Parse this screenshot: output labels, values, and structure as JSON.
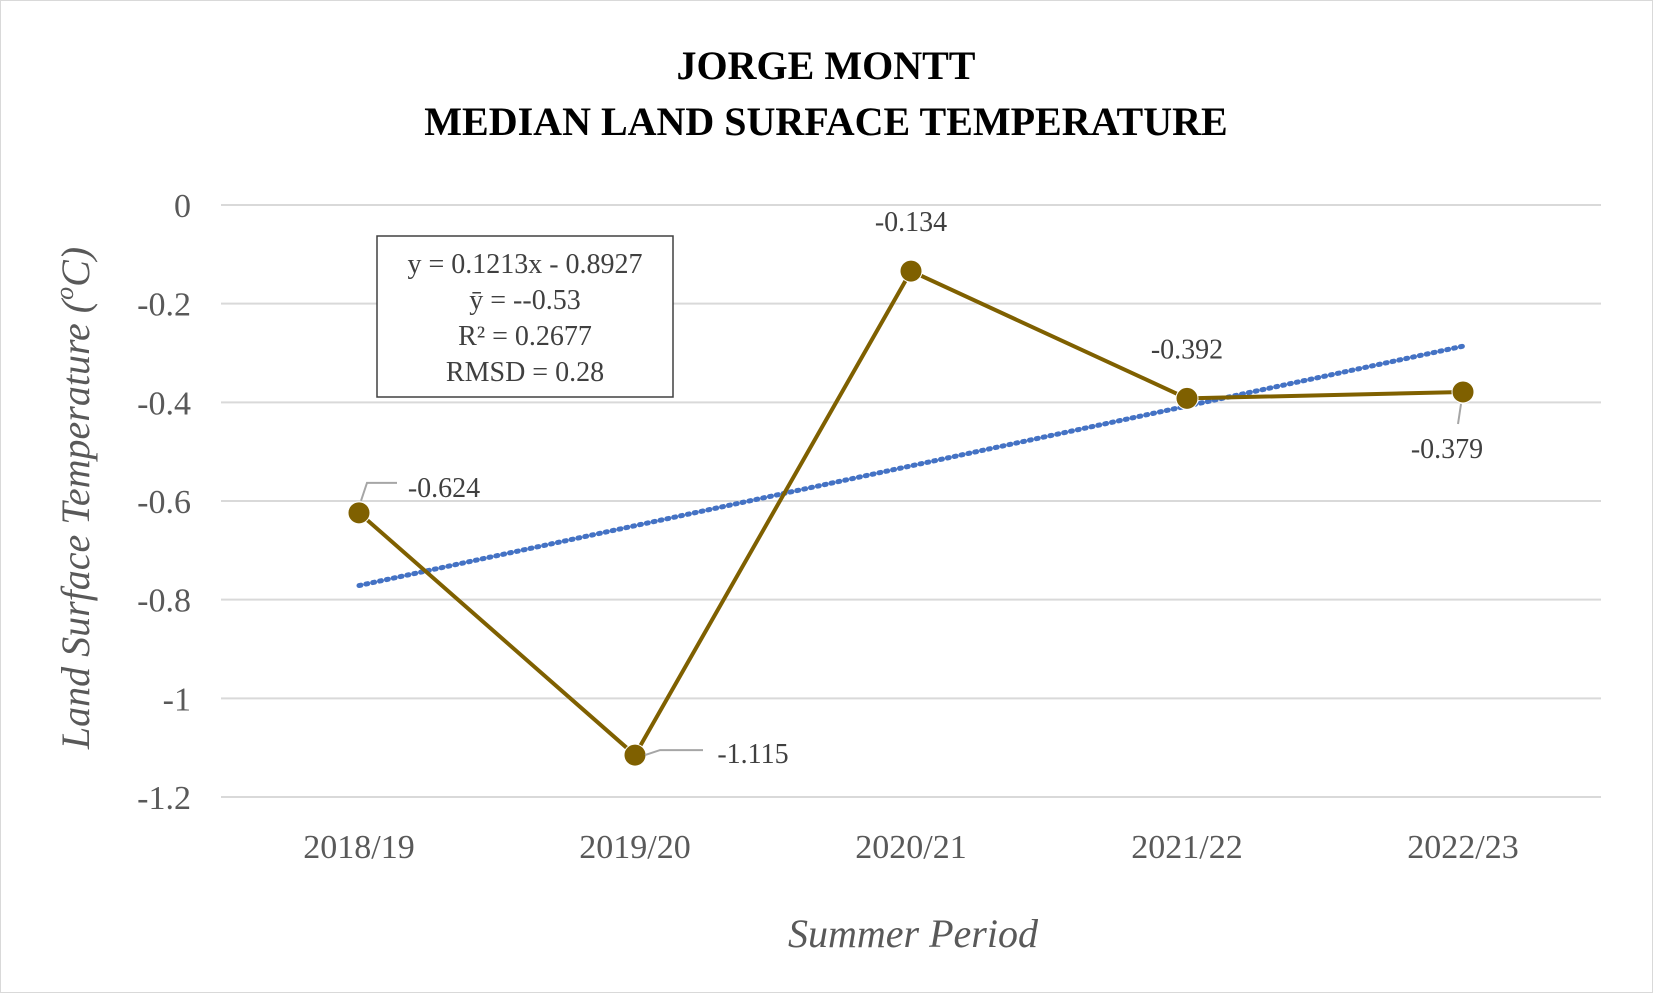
{
  "chart_data": {
    "type": "line",
    "title": [
      "JORGE MONTT",
      "MEDIAN LAND SURFACE TEMPERATURE"
    ],
    "xlabel": "Summer Period",
    "ylabel_main": "Land Surface Temperature (",
    "ylabel_sup": "o",
    "ylabel_end": "C)",
    "categories": [
      "2018/19",
      "2019/20",
      "2020/21",
      "2021/22",
      "2022/23"
    ],
    "series": [
      {
        "values": [
          -0.624,
          -1.115,
          -0.134,
          -0.392,
          -0.379
        ],
        "color": "#7f6000"
      }
    ],
    "data_labels": [
      "-0.624",
      "-1.115",
      "-0.134",
      "-0.392",
      "-0.379"
    ],
    "trendline": {
      "slope": 0.1213,
      "intercept": -0.8927,
      "color": "#4472c4",
      "style": "dotted"
    },
    "annotation_box": [
      "y = 0.1213x - 0.8927",
      "ȳ = --0.53",
      "R² = 0.2677",
      "RMSD = 0.28"
    ],
    "ylim": [
      -1.2,
      0
    ],
    "yticks": [
      0,
      -0.2,
      -0.4,
      -0.6,
      -0.8,
      -1,
      -1.2
    ],
    "ytick_labels": [
      "0",
      "-0.2",
      "-0.4",
      "-0.6",
      "-0.8",
      "-1",
      "-1.2"
    ],
    "grid": true,
    "gridline_color": "#d9d9d9",
    "legend": "none"
  }
}
